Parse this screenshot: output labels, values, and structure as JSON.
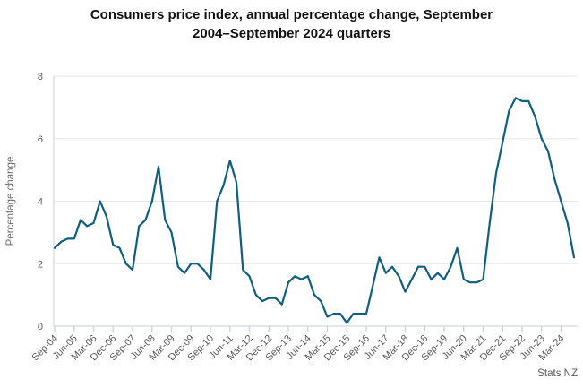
{
  "title": {
    "line1": "Consumers price index, annual percentage change, September",
    "line2": "2004–September 2024 quarters",
    "full": "Consumers price index, annual percentage change, September 2004–September 2024 quarters"
  },
  "source": "Stats NZ",
  "chart_data": {
    "type": "line",
    "title": "Consumers price index, annual percentage change, September 2004–September 2024 quarters",
    "xlabel": "",
    "ylabel": "Percentage change",
    "ylim": [
      0,
      8
    ],
    "yticks": [
      0,
      2,
      4,
      6,
      8
    ],
    "grid": true,
    "legend": "none",
    "source": "Stats NZ",
    "colors": {
      "line": "#0f5e7f",
      "grid": "#e6e6e6",
      "axis": "#dadeec",
      "tick": "#ccd3ea"
    },
    "x": [
      "Sep-04",
      "Dec-04",
      "Mar-05",
      "Jun-05",
      "Sep-05",
      "Dec-05",
      "Mar-06",
      "Jun-06",
      "Sep-06",
      "Dec-06",
      "Mar-07",
      "Jun-07",
      "Sep-07",
      "Dec-07",
      "Mar-08",
      "Jun-08",
      "Sep-08",
      "Dec-08",
      "Mar-09",
      "Jun-09",
      "Sep-09",
      "Dec-09",
      "Mar-10",
      "Jun-10",
      "Sep-10",
      "Dec-10",
      "Mar-11",
      "Jun-11",
      "Sep-11",
      "Dec-11",
      "Mar-12",
      "Jun-12",
      "Sep-12",
      "Dec-12",
      "Mar-13",
      "Jun-13",
      "Sep-13",
      "Dec-13",
      "Mar-14",
      "Jun-14",
      "Sep-14",
      "Dec-14",
      "Mar-15",
      "Jun-15",
      "Sep-15",
      "Dec-15",
      "Mar-16",
      "Jun-16",
      "Sep-16",
      "Dec-16",
      "Mar-17",
      "Jun-17",
      "Sep-17",
      "Dec-17",
      "Mar-18",
      "Jun-18",
      "Sep-18",
      "Dec-18",
      "Mar-19",
      "Jun-19",
      "Sep-19",
      "Dec-19",
      "Mar-20",
      "Jun-20",
      "Sep-20",
      "Dec-20",
      "Mar-21",
      "Jun-21",
      "Sep-21",
      "Dec-21",
      "Mar-22",
      "Jun-22",
      "Sep-22",
      "Dec-22",
      "Mar-23",
      "Jun-23",
      "Sep-23",
      "Dec-23",
      "Mar-24",
      "Jun-24",
      "Sep-24"
    ],
    "values": [
      2.5,
      2.7,
      2.8,
      2.8,
      3.4,
      3.2,
      3.3,
      4.0,
      3.5,
      2.6,
      2.5,
      2.0,
      1.8,
      3.2,
      3.4,
      4.0,
      5.1,
      3.4,
      3.0,
      1.9,
      1.7,
      2.0,
      2.0,
      1.8,
      1.5,
      4.0,
      4.5,
      5.3,
      4.6,
      1.8,
      1.6,
      1.0,
      0.8,
      0.9,
      0.9,
      0.7,
      1.4,
      1.6,
      1.5,
      1.6,
      1.0,
      0.8,
      0.3,
      0.4,
      0.4,
      0.1,
      0.4,
      0.4,
      0.4,
      1.3,
      2.2,
      1.7,
      1.9,
      1.6,
      1.1,
      1.5,
      1.9,
      1.9,
      1.5,
      1.7,
      1.5,
      1.9,
      2.5,
      1.5,
      1.4,
      1.4,
      1.5,
      3.3,
      4.9,
      5.9,
      6.9,
      7.3,
      7.2,
      7.2,
      6.7,
      6.0,
      5.6,
      4.7,
      4.0,
      3.3,
      2.2
    ],
    "xtick_labels": [
      "Sep-04",
      "Jun-05",
      "Mar-06",
      "Dec-06",
      "Sep-07",
      "Jun-08",
      "Mar-09",
      "Dec-09",
      "Sep-10",
      "Jun-11",
      "Mar-12",
      "Dec-12",
      "Sep-13",
      "Jun-14",
      "Mar-15",
      "Dec-15",
      "Sep-16",
      "Jun-17",
      "Mar-18",
      "Dec-18",
      "Sep-19",
      "Jun-20",
      "Mar-21",
      "Dec-21",
      "Sep-22",
      "Jun-23",
      "Mar-24"
    ],
    "xtick_every": 3
  }
}
